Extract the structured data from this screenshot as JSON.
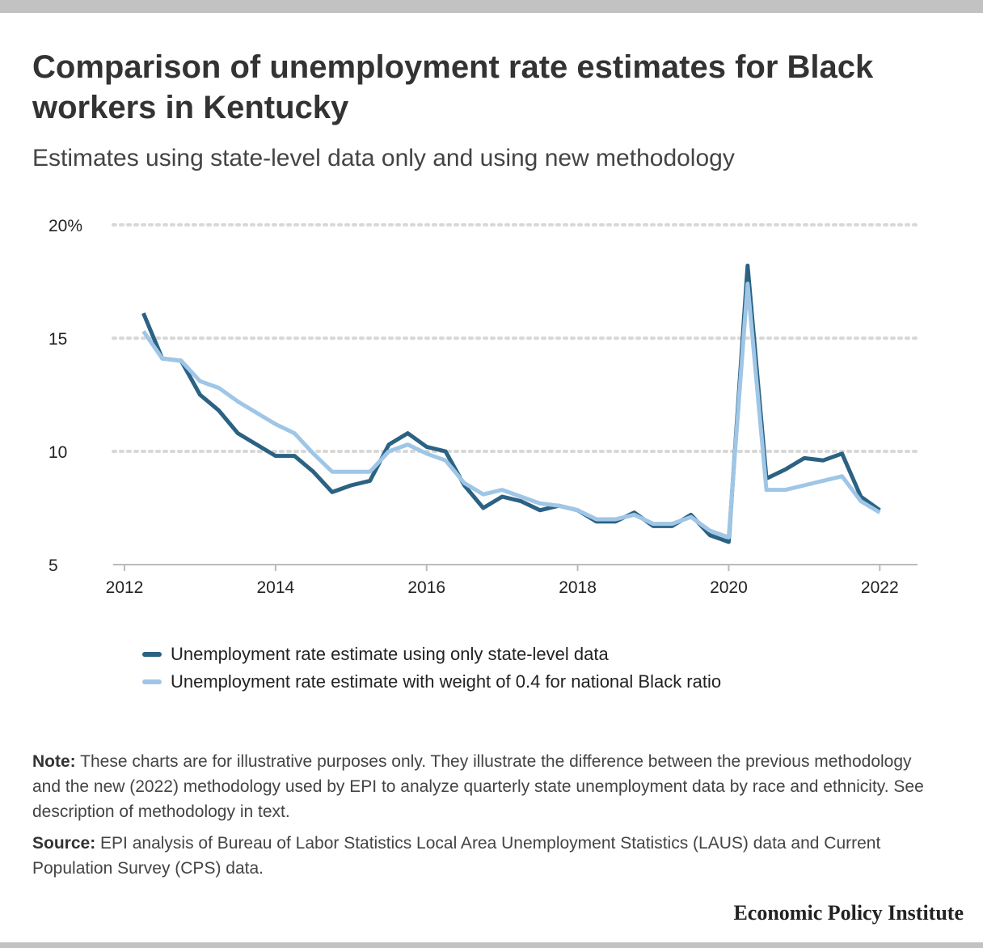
{
  "title": "Comparison of unemployment rate estimates for Black workers in Kentucky",
  "subtitle": "Estimates using state-level data only and using new methodology",
  "note": {
    "label": "Note:",
    "text": " These charts are for illustrative purposes only. They illustrate the difference between the previous methodology and the new (2022) methodology used by EPI to analyze quarterly state unemployment data by race and ethnicity. See description of methodology in text."
  },
  "source": {
    "label": "Source:",
    "text": " EPI analysis of Bureau of Labor Statistics Local Area Unemployment Statistics (LAUS) data and Current Population Survey (CPS) data."
  },
  "brand": "Economic Policy Institute",
  "colors": {
    "series_dark": "#2b6283",
    "series_light": "#9fc6e6",
    "grid": "#d8d8d8",
    "axis": "#bbbbbb"
  },
  "chart_data": {
    "type": "line",
    "ylim": [
      5,
      20
    ],
    "xlim": [
      2011.85,
      2022.5
    ],
    "grid": true,
    "legend_position": "bottom-left",
    "y_ticks": [
      {
        "value": 5,
        "label": "5"
      },
      {
        "value": 10,
        "label": "10"
      },
      {
        "value": 15,
        "label": "15"
      },
      {
        "value": 20,
        "label": "20%"
      }
    ],
    "x_ticks": [
      {
        "value": 2012,
        "label": "2012"
      },
      {
        "value": 2014,
        "label": "2014"
      },
      {
        "value": 2016,
        "label": "2016"
      },
      {
        "value": 2018,
        "label": "2018"
      },
      {
        "value": 2020,
        "label": "2020"
      },
      {
        "value": 2022,
        "label": "2022"
      }
    ],
    "x": [
      2012.25,
      2012.5,
      2012.75,
      2013.0,
      2013.25,
      2013.5,
      2013.75,
      2014.0,
      2014.25,
      2014.5,
      2014.75,
      2015.0,
      2015.25,
      2015.5,
      2015.75,
      2016.0,
      2016.25,
      2016.5,
      2016.75,
      2017.0,
      2017.25,
      2017.5,
      2017.75,
      2018.0,
      2018.25,
      2018.5,
      2018.75,
      2019.0,
      2019.25,
      2019.5,
      2019.75,
      2020.0,
      2020.25,
      2020.5,
      2020.75,
      2021.0,
      2021.25,
      2021.5,
      2021.75,
      2022.0
    ],
    "series": [
      {
        "name": "Unemployment rate estimate using only state-level data",
        "color": "#2b6283",
        "values": [
          16.1,
          14.1,
          14.0,
          12.5,
          11.8,
          10.8,
          10.3,
          9.8,
          9.8,
          9.1,
          8.2,
          8.5,
          8.7,
          10.3,
          10.8,
          10.2,
          10.0,
          8.5,
          7.5,
          8.0,
          7.8,
          7.4,
          7.6,
          7.4,
          6.9,
          6.9,
          7.3,
          6.7,
          6.7,
          7.2,
          6.3,
          6.0,
          18.2,
          8.8,
          9.2,
          9.7,
          9.6,
          9.9,
          8.0,
          7.4
        ]
      },
      {
        "name": "Unemployment rate estimate with weight of 0.4 for national Black ratio",
        "color": "#9fc6e6",
        "values": [
          15.3,
          14.1,
          14.0,
          13.1,
          12.8,
          12.2,
          11.7,
          11.2,
          10.8,
          9.9,
          9.1,
          9.1,
          9.1,
          10.0,
          10.3,
          9.9,
          9.6,
          8.6,
          8.1,
          8.3,
          8.0,
          7.7,
          7.6,
          7.4,
          7.0,
          7.0,
          7.2,
          6.8,
          6.8,
          7.1,
          6.5,
          6.2,
          17.4,
          8.3,
          8.3,
          8.5,
          8.7,
          8.9,
          7.8,
          7.3
        ]
      }
    ]
  }
}
